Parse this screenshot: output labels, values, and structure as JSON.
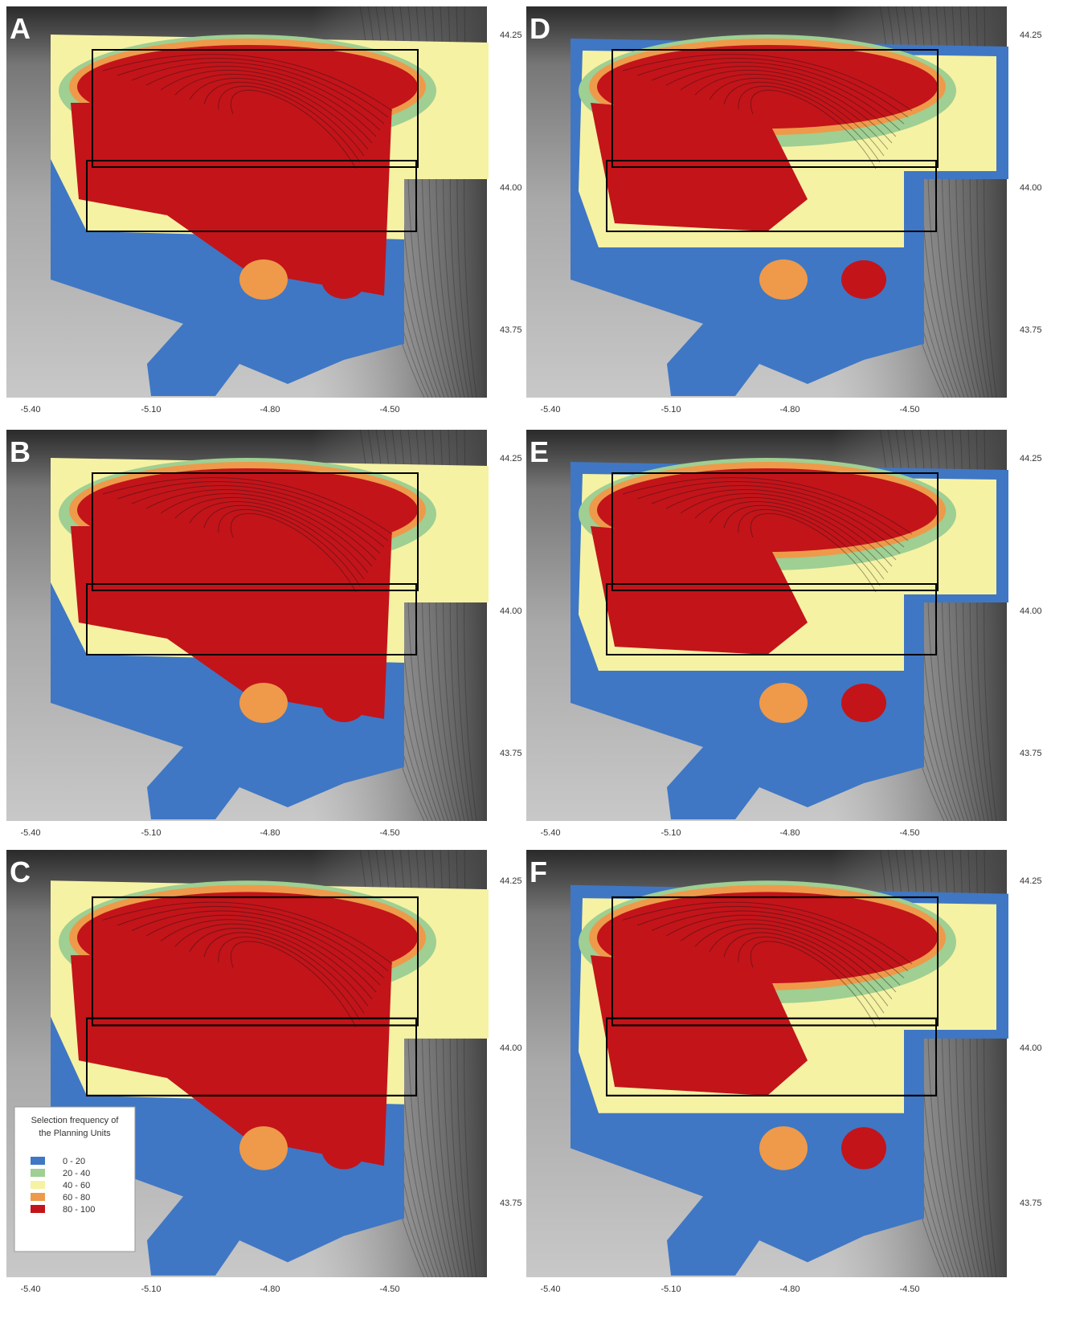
{
  "panels": [
    {
      "label": "A"
    },
    {
      "label": "B"
    },
    {
      "label": "C"
    },
    {
      "label": "D"
    },
    {
      "label": "E"
    },
    {
      "label": "F"
    }
  ],
  "x_ticks": [
    "-5.40",
    "-5.10",
    "-4.80",
    "-4.50"
  ],
  "y_ticks": [
    "44.25",
    "44.00",
    "43.75"
  ],
  "legend": {
    "title_lines": [
      "Selection frequency of",
      "the Planning Units"
    ],
    "items": [
      {
        "label": "0 - 20",
        "color": "#3f77c4"
      },
      {
        "label": "20 - 40",
        "color": "#9fcf92"
      },
      {
        "label": "40 - 60",
        "color": "#f6f2a4"
      },
      {
        "label": "60 - 80",
        "color": "#ee9a4a"
      },
      {
        "label": "80 - 100",
        "color": "#c3141a"
      }
    ]
  }
}
